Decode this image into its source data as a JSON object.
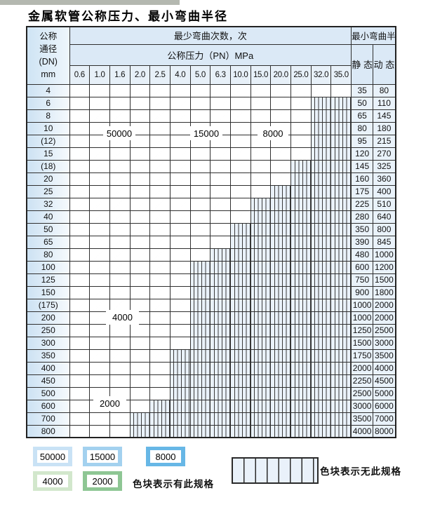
{
  "page": {
    "title": "金属软管公称压力、最小弯曲半径"
  },
  "table_header": {
    "dn_lines": [
      "公称",
      "通径",
      "(DN)",
      "mm"
    ],
    "bend_cycles": "最少弯曲次数，次",
    "bend_radius": "最小弯曲半径",
    "pressure": "公称压力（PN）MPa",
    "static": "静 态",
    "dynamic": "动 态"
  },
  "overlay_labels": {
    "l50000": "50000",
    "l15000": "15000",
    "l8000": "8000",
    "l4000": "4000",
    "l2000": "2000"
  },
  "legend": {
    "items": [
      {
        "code": "A",
        "label": "50000"
      },
      {
        "code": "B",
        "label": "15000"
      },
      {
        "code": "C",
        "label": "8000"
      },
      {
        "code": "D",
        "label": "4000"
      },
      {
        "code": "E",
        "label": "2000"
      }
    ],
    "has_spec_text": "色块表示有此规格",
    "no_spec_text": "色块表示无此规格"
  },
  "colors": {
    "cycles_50000": "#cbe3f5",
    "cycles_15000": "#a5d2ef",
    "cycles_8000": "#6dbce8",
    "cycles_4000": "#d5e8d0",
    "cycles_2000": "#90c694",
    "no_spec_bg": "#eaf2fa",
    "grid_line": "#2f2f2f",
    "header_bg": "#dbe9f6"
  },
  "chart_data": {
    "type": "table",
    "title": "金属软管公称压力、最小弯曲半径",
    "pressure_columns_mpa": [
      "0.6",
      "1.0",
      "1.6",
      "2.0",
      "2.5",
      "4.0",
      "5.0",
      "6.3",
      "10.0",
      "15.0",
      "20.0",
      "25.0",
      "32.0",
      "35.0"
    ],
    "code_meaning_cycles": {
      "A": 50000,
      "B": 15000,
      "C": 8000,
      "D": 4000,
      "E": 2000,
      "X": "无此规格"
    },
    "radius_columns": [
      "静态",
      "动态"
    ],
    "rows": [
      {
        "dn": "4",
        "codes": "AAAAABBBCCCCCC",
        "static": "35",
        "dynamic": "80"
      },
      {
        "dn": "6",
        "codes": "AAAAABBBCCCCXX",
        "static": "50",
        "dynamic": "110"
      },
      {
        "dn": "8",
        "codes": "AAAAABBBCCCCXX",
        "static": "65",
        "dynamic": "145"
      },
      {
        "dn": "10",
        "codes": "AAAAABBBCCCCXX",
        "static": "80",
        "dynamic": "180"
      },
      {
        "dn": "(12)",
        "codes": "AAAAABBBCCCCXX",
        "static": "95",
        "dynamic": "215"
      },
      {
        "dn": "15",
        "codes": "AAAAABBBCCCCXX",
        "static": "120",
        "dynamic": "270"
      },
      {
        "dn": "(18)",
        "codes": "AAAAABBBCCCXXX",
        "static": "145",
        "dynamic": "325"
      },
      {
        "dn": "20",
        "codes": "AAAAABBBCCCXXX",
        "static": "160",
        "dynamic": "360"
      },
      {
        "dn": "25",
        "codes": "AAAAABBBCCXXXX",
        "static": "175",
        "dynamic": "400"
      },
      {
        "dn": "32",
        "codes": "AAAAABBCCXXXXX",
        "static": "225",
        "dynamic": "510"
      },
      {
        "dn": "40",
        "codes": "AAAAABBCCXXXXX",
        "static": "280",
        "dynamic": "640"
      },
      {
        "dn": "50",
        "codes": "AAAAABCCXXXXXX",
        "static": "350",
        "dynamic": "800"
      },
      {
        "dn": "65",
        "codes": "AAAAABCCXXXXXX",
        "static": "390",
        "dynamic": "845"
      },
      {
        "dn": "80",
        "codes": "AAAAABCXXXXXXX",
        "static": "480",
        "dynamic": "1000"
      },
      {
        "dn": "100",
        "codes": "DDDDDDXXXXXXXX",
        "static": "600",
        "dynamic": "1200"
      },
      {
        "dn": "125",
        "codes": "DDDDDDXXXXXXXX",
        "static": "750",
        "dynamic": "1500"
      },
      {
        "dn": "150",
        "codes": "DDDDDDXXXXXXXX",
        "static": "900",
        "dynamic": "1800"
      },
      {
        "dn": "(175)",
        "codes": "DDDDDDXXXXXXXX",
        "static": "1000",
        "dynamic": "2000"
      },
      {
        "dn": "200",
        "codes": "DDDDDDXXXXXXXX",
        "static": "1000",
        "dynamic": "2000"
      },
      {
        "dn": "250",
        "codes": "DDDDDDXXXXXXXX",
        "static": "1250",
        "dynamic": "2500"
      },
      {
        "dn": "300",
        "codes": "DDDDDDXXXXXXXX",
        "static": "1500",
        "dynamic": "3000"
      },
      {
        "dn": "350",
        "codes": "EEEEEXXXXXXXXX",
        "static": "1750",
        "dynamic": "3500"
      },
      {
        "dn": "400",
        "codes": "EEEEEXXXXXXXXX",
        "static": "2000",
        "dynamic": "4000"
      },
      {
        "dn": "450",
        "codes": "EEEEEXXXXXXXXX",
        "static": "2250",
        "dynamic": "4500"
      },
      {
        "dn": "500",
        "codes": "EEEEEXXXXXXXXX",
        "static": "2500",
        "dynamic": "5000"
      },
      {
        "dn": "600",
        "codes": "EEEEXXXXXXXXXX",
        "static": "3000",
        "dynamic": "6000"
      },
      {
        "dn": "700",
        "codes": "EEEXXXXXXXXXXX",
        "static": "3500",
        "dynamic": "7000"
      },
      {
        "dn": "800",
        "codes": "EEEXXXXXXXXXXX",
        "static": "4000",
        "dynamic": "8000"
      }
    ]
  }
}
